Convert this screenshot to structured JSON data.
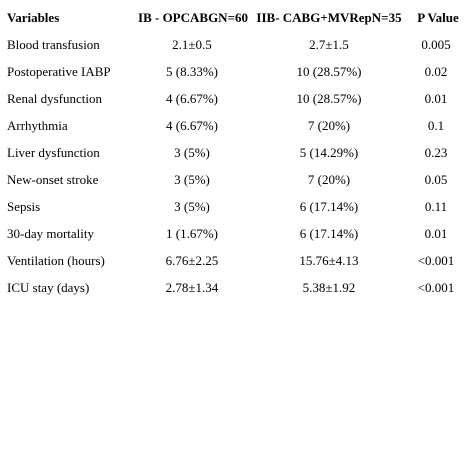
{
  "table": {
    "headers": [
      "Variables",
      "IB - OPCABGN=60",
      "IIB- CABG+MVRepN=35",
      "P Value"
    ],
    "rows": [
      [
        "Blood transfusion",
        "2.1±0.5",
        "2.7±1.5",
        "0.005"
      ],
      [
        "Postoperative IABP",
        "5 (8.33%)",
        "10 (28.57%)",
        "0.02"
      ],
      [
        "Renal dysfunction",
        "4 (6.67%)",
        "10 (28.57%)",
        "0.01"
      ],
      [
        "Arrhythmia",
        "4 (6.67%)",
        "7 (20%)",
        "0.1"
      ],
      [
        "Liver dysfunction",
        "3 (5%)",
        "5 (14.29%)",
        "0.23"
      ],
      [
        "New-onset stroke",
        "3 (5%)",
        "7 (20%)",
        "0.05"
      ],
      [
        "Sepsis",
        "3 (5%)",
        "6 (17.14%)",
        "0.11"
      ],
      [
        "30-day mortality",
        "1 (1.67%)",
        "6 (17.14%)",
        "0.01"
      ],
      [
        "Ventilation (hours)",
        "6.76±2.25",
        "15.76±4.13",
        "<0.001"
      ],
      [
        "ICU stay (days)",
        "2.78±1.34",
        "5.38±1.92",
        "<0.001"
      ]
    ]
  }
}
